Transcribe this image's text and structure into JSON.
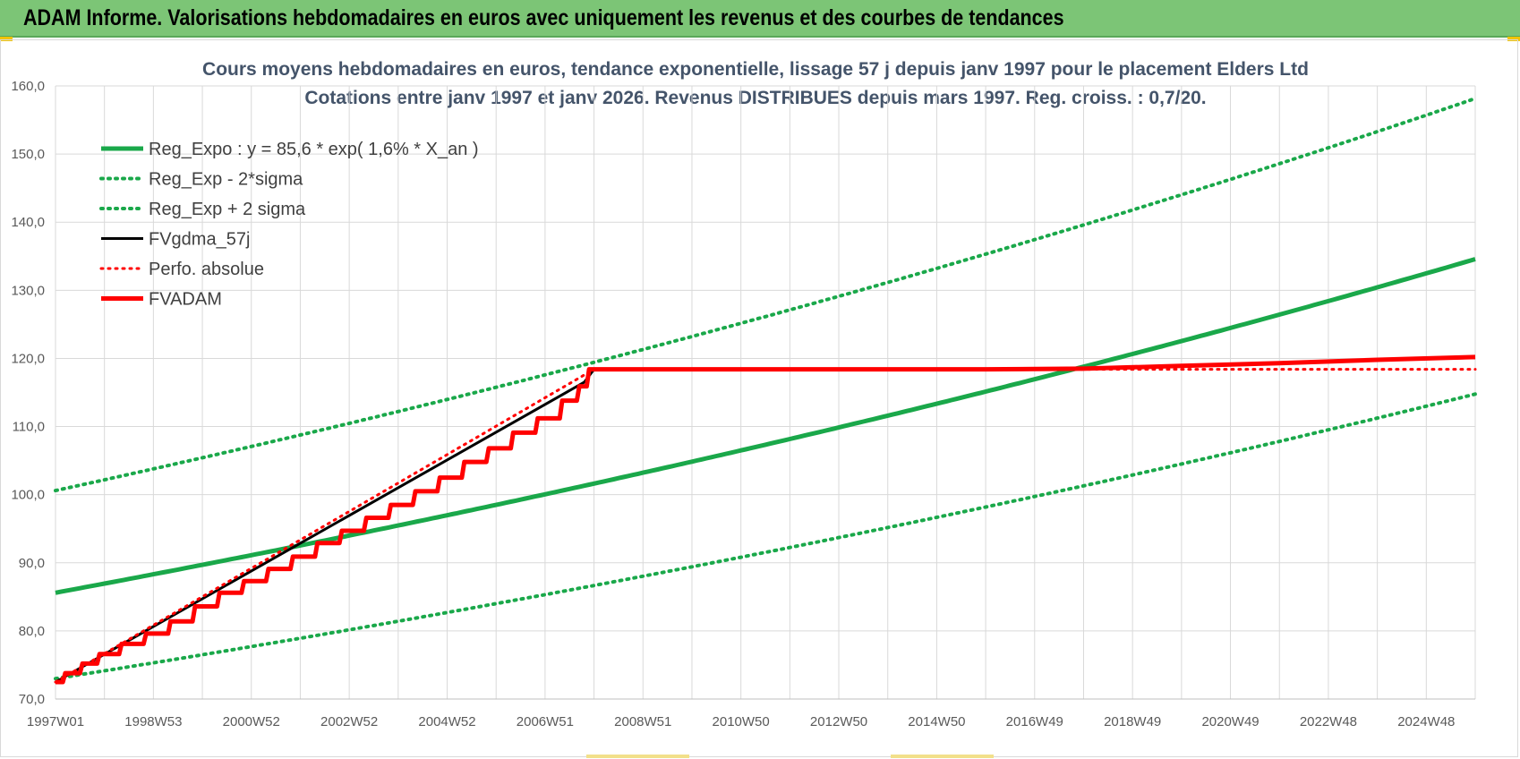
{
  "page_title": "ADAM Informe. Valorisations hebdomadaires en euros avec uniquement les revenus et des courbes de tendances",
  "colors": {
    "banner": "#7cc576",
    "green": "#1aa84a",
    "red": "#ff0000",
    "black": "#000000"
  },
  "chart_data": {
    "type": "line",
    "title": "Cours moyens hebdomadaires en euros, tendance exponentielle, lissage 57 j depuis janv 1997  pour le  placement Elders Ltd",
    "subtitle": "Cotations entre janv 1997 et janv 2026. Revenus DISTRIBUES depuis mars 1997.  Reg. croiss. : 0,7/20.",
    "xlabel": "",
    "ylabel": "",
    "ylim": [
      70,
      160
    ],
    "xlim": [
      1997.0,
      2026.0
    ],
    "grid": true,
    "legend_position": "top-left",
    "y_ticks": [
      "70,0",
      "80,0",
      "90,0",
      "100,0",
      "110,0",
      "120,0",
      "130,0",
      "140,0",
      "150,0",
      "160,0"
    ],
    "x_tick_labels": [
      "1997W01",
      "1998W53",
      "2000W52",
      "2002W52",
      "2004W52",
      "2006W51",
      "2008W51",
      "2010W50",
      "2012W50",
      "2014W50",
      "2016W49",
      "2018W49",
      "2020W49",
      "2022W48",
      "2024W48"
    ],
    "x_tick_years": [
      1997.0,
      1999.0,
      2001.0,
      2003.0,
      2005.0,
      2007.0,
      2009.0,
      2011.0,
      2013.0,
      2015.0,
      2017.0,
      2019.0,
      2021.0,
      2023.0,
      2025.0
    ],
    "series": [
      {
        "name": "Reg_Expo : y = 85,6 * exp( 1,6% *  X_an )",
        "style": "solid",
        "color": "#1aa84a",
        "width": 5,
        "model": {
          "a": 85.6,
          "b": 0.0156
        }
      },
      {
        "name": "Reg_Exp - 2*sigma",
        "style": "dotted",
        "color": "#1aa84a",
        "width": 4,
        "model": {
          "a": 73.0,
          "b": 0.0156
        }
      },
      {
        "name": "Reg_Exp + 2 sigma",
        "style": "dotted",
        "color": "#1aa84a",
        "width": 4,
        "model": {
          "a": 100.6,
          "b": 0.0156
        }
      },
      {
        "name": "FVgdma_57j",
        "style": "solid",
        "color": "#000000",
        "width": 3,
        "x": [
          1997.0,
          2007.8,
          2008.0,
          2010.0,
          2014.0,
          2016.0,
          2018.0,
          2020.0,
          2022.0,
          2024.0,
          2026.0
        ],
        "y": [
          72.5,
          116.5,
          118.4,
          118.4,
          118.4,
          118.4,
          118.6,
          118.9,
          119.3,
          119.8,
          120.1
        ]
      },
      {
        "name": "Perfo. absolue",
        "style": "dotted",
        "color": "#ff0000",
        "width": 3,
        "x": [
          1997.0,
          2008.0,
          2026.0
        ],
        "y": [
          72.5,
          118.4,
          118.4
        ]
      },
      {
        "name": "FVADAM",
        "style": "solid",
        "color": "#ff0000",
        "width": 5,
        "steps": {
          "x": [
            1997.0,
            1997.2,
            1997.55,
            1997.9,
            1998.35,
            1998.85,
            1999.35,
            1999.85,
            2000.35,
            2000.85,
            2001.35,
            2001.85,
            2002.35,
            2002.85,
            2003.35,
            2003.85,
            2004.35,
            2004.85,
            2005.35,
            2005.85,
            2006.35,
            2006.85,
            2007.35,
            2007.7
          ],
          "y": [
            72.5,
            73.8,
            75.2,
            76.6,
            78.1,
            79.6,
            81.4,
            83.6,
            85.6,
            87.3,
            89.1,
            90.9,
            92.9,
            94.7,
            96.6,
            98.5,
            100.5,
            102.5,
            104.8,
            106.8,
            109.1,
            111.2,
            113.8,
            115.9
          ]
        },
        "tail": {
          "x": [
            2007.9,
            2016.0,
            2018.0,
            2020.0,
            2022.0,
            2024.0,
            2026.0
          ],
          "y": [
            118.4,
            118.4,
            118.5,
            118.9,
            119.3,
            119.8,
            120.2
          ]
        }
      }
    ]
  }
}
